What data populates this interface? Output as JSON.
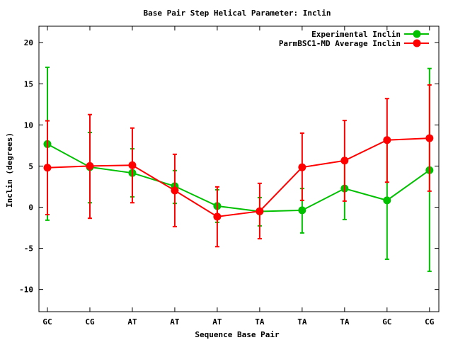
{
  "chart_data": {
    "type": "line",
    "title": "Base Pair Step Helical Parameter: Inclin",
    "xlabel": "Sequence Base Pair",
    "ylabel": "Inclin (degrees)",
    "categories": [
      "GC",
      "CG",
      "AT",
      "AT",
      "AT",
      "TA",
      "TA",
      "TA",
      "GC",
      "CG"
    ],
    "ylim": [
      -12.7,
      22
    ],
    "yticks": [
      -10,
      -5,
      0,
      5,
      10,
      15,
      20
    ],
    "grid": false,
    "legend_position": "top-right",
    "series": [
      {
        "name": "Experimental Inclin",
        "color": "#00c000",
        "values": [
          7.67,
          4.88,
          4.16,
          2.55,
          0.14,
          -0.52,
          -0.38,
          2.27,
          0.83,
          4.5
        ],
        "err_low": [
          -1.58,
          0.54,
          1.26,
          0.46,
          -1.84,
          -2.27,
          -3.13,
          -1.5,
          -6.33,
          -7.8
        ],
        "err_high": [
          17.0,
          9.08,
          7.1,
          4.45,
          2.12,
          1.17,
          2.27,
          6.0,
          8.0,
          16.86
        ]
      },
      {
        "name": "ParmBSC1-MD Average Inclin",
        "color": "#ff0000",
        "values": [
          4.8,
          5.0,
          5.1,
          2.03,
          -1.15,
          -0.49,
          4.85,
          5.66,
          8.16,
          8.39
        ],
        "err_low": [
          -0.9,
          -1.35,
          0.54,
          -2.36,
          -4.8,
          -3.83,
          0.83,
          0.74,
          3.04,
          1.95
        ],
        "err_high": [
          10.5,
          11.26,
          9.62,
          6.43,
          2.47,
          2.9,
          9.0,
          10.54,
          13.2,
          14.86
        ]
      }
    ]
  }
}
